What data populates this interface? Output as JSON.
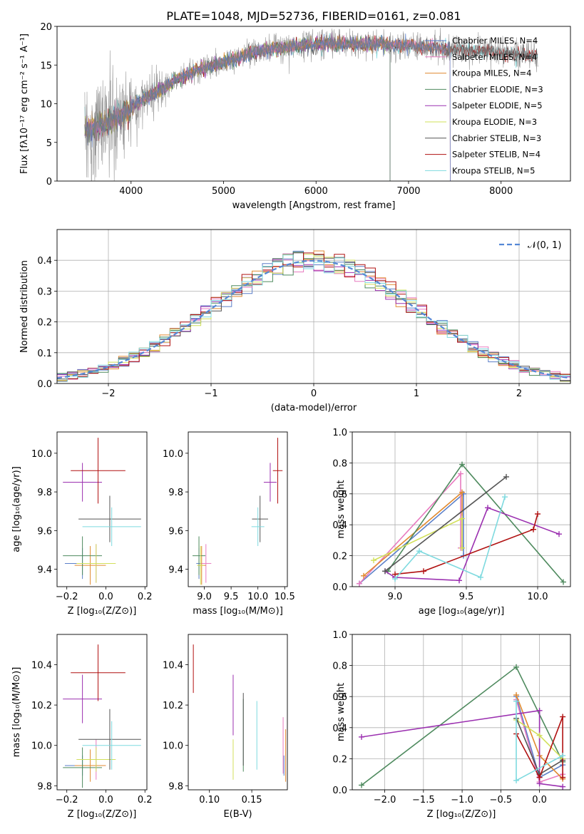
{
  "chart_data": [
    {
      "type": "line",
      "title": "PLATE=1048, MJD=52736, FIBERID=0161, z=0.081",
      "xlabel": "wavelength [Angstrom, rest frame]",
      "ylabel": "Flux [fλ10⁻¹⁷ erg cm⁻² s⁻¹ A⁻¹]",
      "xlim": [
        3200,
        8750
      ],
      "ylim": [
        0,
        20
      ],
      "xticks": [
        "4000",
        "5000",
        "6000",
        "7000",
        "8000"
      ],
      "yticks": [
        "0",
        "5",
        "10",
        "15",
        "20"
      ],
      "grid": false,
      "legend_position": "right",
      "continuum": {
        "x": [
          3500,
          3700,
          3900,
          4100,
          4300,
          4500,
          4700,
          4900,
          5100,
          5300,
          5500,
          5700,
          5900,
          6100,
          6300,
          6500,
          6700,
          6900,
          7100,
          7300,
          7500,
          7700,
          7900,
          8100,
          8300,
          8400
        ],
        "y": [
          6.5,
          7.2,
          8.5,
          10.4,
          11.6,
          13.2,
          14.2,
          15.0,
          15.8,
          16.5,
          17.0,
          17.3,
          17.6,
          17.7,
          17.8,
          17.7,
          17.8,
          17.6,
          17.4,
          17.2,
          17.0,
          16.8,
          16.7,
          16.5,
          16.3,
          16.2
        ]
      },
      "series": [
        {
          "name": "Chabrier MILES, N_SSP=4",
          "color": "#5B7FC8",
          "xmax": 7450
        },
        {
          "name": "Salpeter MILES, N_SSP=4",
          "color": "#E87BC0",
          "xmax": 7450
        },
        {
          "name": "Kroupa MILES, N_SSP=4",
          "color": "#E08A30",
          "xmax": 7450
        },
        {
          "name": "Chabrier ELODIE, N_SSP=3",
          "color": "#4E8A5E",
          "xmax": 6800
        },
        {
          "name": "Salpeter ELODIE, N_SSP=5",
          "color": "#9B30B0",
          "xmax": 6800
        },
        {
          "name": "Kroupa ELODIE, N_SSP=3",
          "color": "#D2E05A",
          "xmax": 6800
        },
        {
          "name": "Chabrier STELIB, N_SSP=3",
          "color": "#555555",
          "xmax": 8400
        },
        {
          "name": "Salpeter STELIB, N_SSP=4",
          "color": "#B01010",
          "xmax": 8400
        },
        {
          "name": "Kroupa STELIB, N_SSP=5",
          "color": "#7EDADF",
          "xmax": 8400
        }
      ]
    },
    {
      "type": "line",
      "xlabel": "(data-model)/error",
      "ylabel": "Normed distribution",
      "xlim": [
        -2.5,
        2.5
      ],
      "ylim": [
        0,
        0.5
      ],
      "xticks": [
        "−2",
        "−1",
        "0",
        "1",
        "2"
      ],
      "yticks": [
        "0.0",
        "0.1",
        "0.2",
        "0.3",
        "0.4"
      ],
      "grid": true,
      "legend_position": "top-right",
      "reference": {
        "name": "𝒩(0, 1)",
        "color": "#5588D6",
        "style": "dashed"
      },
      "bin_width": 0.1
    },
    {
      "type": "scatter",
      "xlabel": "Z [log₁₀(Z/Z⊙)]",
      "ylabel": "age  [log₁₀(age/yr)]",
      "xlim": [
        -0.25,
        0.21
      ],
      "ylim": [
        9.31,
        10.11
      ],
      "xticks": [
        "−0.2",
        "0.0",
        "0.2"
      ],
      "yticks": [
        "9.4",
        "9.6",
        "9.8",
        "10.0"
      ],
      "points": [
        {
          "x": -0.12,
          "xerr": 0.09,
          "y": 9.43,
          "yerr": 0.08,
          "color": "#5B7FC8"
        },
        {
          "x": -0.05,
          "xerr": 0.1,
          "y": 9.43,
          "yerr": 0.1,
          "color": "#E87BC0"
        },
        {
          "x": -0.08,
          "xerr": 0.08,
          "y": 9.42,
          "yerr": 0.1,
          "color": "#E08A30"
        },
        {
          "x": -0.12,
          "xerr": 0.1,
          "y": 9.47,
          "yerr": 0.1,
          "color": "#4E8A5E"
        },
        {
          "x": -0.12,
          "xerr": 0.1,
          "y": 9.85,
          "yerr": 0.1,
          "color": "#9B30B0"
        },
        {
          "x": -0.05,
          "xerr": 0.1,
          "y": 9.43,
          "yerr": 0.1,
          "color": "#D2E05A"
        },
        {
          "x": 0.02,
          "xerr": 0.16,
          "y": 9.66,
          "yerr": 0.12,
          "color": "#555555"
        },
        {
          "x": -0.04,
          "xerr": 0.14,
          "y": 9.91,
          "yerr": 0.17,
          "color": "#B01010"
        },
        {
          "x": 0.03,
          "xerr": 0.15,
          "y": 9.62,
          "yerr": 0.1,
          "color": "#7EDADF"
        }
      ]
    },
    {
      "type": "scatter",
      "xlabel": "mass [log₁₀(M/M⊙)]",
      "ylabel": "",
      "xlim": [
        8.7,
        10.55
      ],
      "ylim": [
        9.31,
        10.11
      ],
      "xticks": [
        "9.0",
        "9.5",
        "10.0",
        "10.5"
      ],
      "yticks": [
        "9.4",
        "9.6",
        "9.8",
        "10.0"
      ],
      "points": [
        {
          "x": 8.9,
          "xerr": 0.05,
          "y": 9.43,
          "yerr": 0.08,
          "color": "#5B7FC8"
        },
        {
          "x": 9.03,
          "xerr": 0.1,
          "y": 9.43,
          "yerr": 0.1,
          "color": "#E87BC0"
        },
        {
          "x": 8.95,
          "xerr": 0.08,
          "y": 9.42,
          "yerr": 0.1,
          "color": "#E08A30"
        },
        {
          "x": 8.9,
          "xerr": 0.12,
          "y": 9.47,
          "yerr": 0.1,
          "color": "#4E8A5E"
        },
        {
          "x": 10.23,
          "xerr": 0.12,
          "y": 9.85,
          "yerr": 0.1,
          "color": "#9B30B0"
        },
        {
          "x": 8.93,
          "xerr": 0.06,
          "y": 9.42,
          "yerr": 0.1,
          "color": "#D2E05A"
        },
        {
          "x": 10.04,
          "xerr": 0.15,
          "y": 9.66,
          "yerr": 0.12,
          "color": "#555555"
        },
        {
          "x": 10.37,
          "xerr": 0.09,
          "y": 9.91,
          "yerr": 0.17,
          "color": "#B01010"
        },
        {
          "x": 10.0,
          "xerr": 0.12,
          "y": 9.62,
          "yerr": 0.1,
          "color": "#7EDADF"
        }
      ]
    },
    {
      "type": "line",
      "xlabel": "age  [log₁₀(age/yr)]",
      "ylabel": "mass weight",
      "xlim": [
        8.7,
        10.23
      ],
      "ylim": [
        0,
        1
      ],
      "xticks": [
        "9.0",
        "9.5",
        "10.0"
      ],
      "yticks": [
        "0.0",
        "0.2",
        "0.4",
        "0.6",
        "0.8",
        "1.0"
      ],
      "grid": true,
      "series": [
        {
          "color": "#5B7FC8",
          "x": [
            8.75,
            9.48,
            9.48
          ],
          "y": [
            0.02,
            0.6,
            0.2
          ]
        },
        {
          "color": "#E87BC0",
          "x": [
            8.75,
            9.46,
            9.46
          ],
          "y": [
            0.02,
            0.73,
            0.25
          ]
        },
        {
          "color": "#E08A30",
          "x": [
            8.78,
            9.47,
            9.47
          ],
          "y": [
            0.07,
            0.61,
            0.25
          ]
        },
        {
          "color": "#4E8A5E",
          "x": [
            8.95,
            9.47,
            10.18
          ],
          "y": [
            0.1,
            0.79,
            0.03
          ]
        },
        {
          "color": "#9B30B0",
          "x": [
            10.15,
            9.65,
            9.45,
            9.0,
            8.93
          ],
          "y": [
            0.34,
            0.51,
            0.04,
            0.06,
            0.1
          ]
        },
        {
          "color": "#D2E05A",
          "x": [
            8.85,
            9.47,
            9.47
          ],
          "y": [
            0.17,
            0.44,
            0.25
          ]
        },
        {
          "color": "#555555",
          "x": [
            8.93,
            9.78
          ],
          "y": [
            0.1,
            0.71
          ]
        },
        {
          "color": "#B01010",
          "x": [
            9.0,
            9.2,
            9.97,
            10.0
          ],
          "y": [
            0.08,
            0.1,
            0.37,
            0.47
          ]
        },
        {
          "color": "#7EDADF",
          "x": [
            9.0,
            9.17,
            9.6,
            9.77
          ],
          "y": [
            0.05,
            0.23,
            0.06,
            0.58
          ]
        }
      ]
    },
    {
      "type": "scatter",
      "xlabel": "Z [log₁₀(Z/Z⊙)]",
      "ylabel": "mass [log₁₀(M/M⊙)]",
      "xlim": [
        -0.25,
        0.21
      ],
      "ylim": [
        9.78,
        10.55
      ],
      "xticks": [
        "−0.2",
        "0.0",
        "0.2"
      ],
      "yticks": [
        "9.8",
        "10.0",
        "10.2",
        "10.4"
      ],
      "points": [
        {
          "x": -0.12,
          "xerr": 0.09,
          "y": 9.9,
          "yerr": 0.05,
          "color": "#5B7FC8"
        },
        {
          "x": -0.05,
          "xerr": 0.1,
          "y": 9.93,
          "yerr": 0.1,
          "color": "#E87BC0"
        },
        {
          "x": -0.08,
          "xerr": 0.08,
          "y": 9.9,
          "yerr": 0.08,
          "color": "#E08A30"
        },
        {
          "x": -0.12,
          "xerr": 0.1,
          "y": 9.89,
          "yerr": 0.1,
          "color": "#4E8A5E"
        },
        {
          "x": -0.12,
          "xerr": 0.1,
          "y": 10.23,
          "yerr": 0.12,
          "color": "#9B30B0"
        },
        {
          "x": -0.05,
          "xerr": 0.1,
          "y": 9.93,
          "yerr": 0.06,
          "color": "#D2E05A"
        },
        {
          "x": 0.02,
          "xerr": 0.16,
          "y": 10.03,
          "yerr": 0.15,
          "color": "#555555"
        },
        {
          "x": -0.04,
          "xerr": 0.14,
          "y": 10.36,
          "yerr": 0.14,
          "color": "#B01010"
        },
        {
          "x": 0.03,
          "xerr": 0.15,
          "y": 10.0,
          "yerr": 0.12,
          "color": "#7EDADF"
        }
      ]
    },
    {
      "type": "scatter",
      "xlabel": "E(B-V)",
      "ylabel": "",
      "xlim": [
        0.075,
        0.192
      ],
      "ylim": [
        9.78,
        10.55
      ],
      "xticks": [
        "0.10",
        "0.15"
      ],
      "yticks": [
        "9.8",
        "10.0",
        "10.2",
        "10.4"
      ],
      "points": [
        {
          "x": 0.188,
          "y": 9.9,
          "yerr": 0.05,
          "color": "#5B7FC8"
        },
        {
          "x": 0.187,
          "y": 10.0,
          "yerr": 0.14,
          "color": "#E87BC0"
        },
        {
          "x": 0.19,
          "y": 9.95,
          "yerr": 0.13,
          "color": "#E08A30"
        },
        {
          "x": 0.14,
          "y": 10.05,
          "yerr": 0.18,
          "color": "#4E8A5E"
        },
        {
          "x": 0.128,
          "y": 10.2,
          "yerr": 0.15,
          "color": "#9B30B0"
        },
        {
          "x": 0.128,
          "y": 9.93,
          "yerr": 0.1,
          "color": "#D2E05A"
        },
        {
          "x": 0.14,
          "y": 10.08,
          "yerr": 0.18,
          "color": "#555555"
        },
        {
          "x": 0.081,
          "y": 10.38,
          "yerr": 0.12,
          "color": "#B01010"
        },
        {
          "x": 0.156,
          "y": 10.05,
          "yerr": 0.17,
          "color": "#7EDADF"
        }
      ]
    },
    {
      "type": "line",
      "xlabel": "Z [log₁₀(Z/Z⊙)]",
      "ylabel": "mass weight",
      "xlim": [
        -2.42,
        0.4
      ],
      "ylim": [
        0,
        1
      ],
      "xticks": [
        "−2.0",
        "−1.5",
        "−1.0",
        "−0.5",
        "0.0"
      ],
      "yticks": [
        "0.0",
        "0.2",
        "0.4",
        "0.6",
        "0.8",
        "1.0"
      ],
      "grid": true,
      "series": [
        {
          "color": "#5B7FC8",
          "x": [
            -0.3,
            0.0,
            0.3
          ],
          "y": [
            0.6,
            0.08,
            0.16
          ]
        },
        {
          "color": "#E87BC0",
          "x": [
            -0.3,
            0.0,
            0.3
          ],
          "y": [
            0.58,
            0.05,
            0.1
          ]
        },
        {
          "color": "#E08A30",
          "x": [
            -0.3,
            0.0,
            0.3
          ],
          "y": [
            0.61,
            0.22,
            0.07
          ]
        },
        {
          "color": "#4E8A5E",
          "x": [
            -2.3,
            -0.3,
            0.3
          ],
          "y": [
            0.03,
            0.79,
            0.18
          ]
        },
        {
          "color": "#9B30B0",
          "x": [
            -2.3,
            0.0,
            0.0,
            0.3
          ],
          "y": [
            0.34,
            0.51,
            0.04,
            0.02
          ]
        },
        {
          "color": "#D2E05A",
          "x": [
            -0.3,
            0.0,
            0.3
          ],
          "y": [
            0.45,
            0.35,
            0.2
          ]
        },
        {
          "color": "#555555",
          "x": [
            -0.3,
            0.0,
            0.3
          ],
          "y": [
            0.46,
            0.1,
            0.19
          ]
        },
        {
          "color": "#B01010",
          "x": [
            -0.3,
            0.0,
            0.3,
            0.3
          ],
          "y": [
            0.36,
            0.08,
            0.47,
            0.08
          ]
        },
        {
          "color": "#7EDADF",
          "x": [
            -0.3,
            -0.3,
            0.3
          ],
          "y": [
            0.57,
            0.06,
            0.22
          ]
        }
      ]
    }
  ]
}
